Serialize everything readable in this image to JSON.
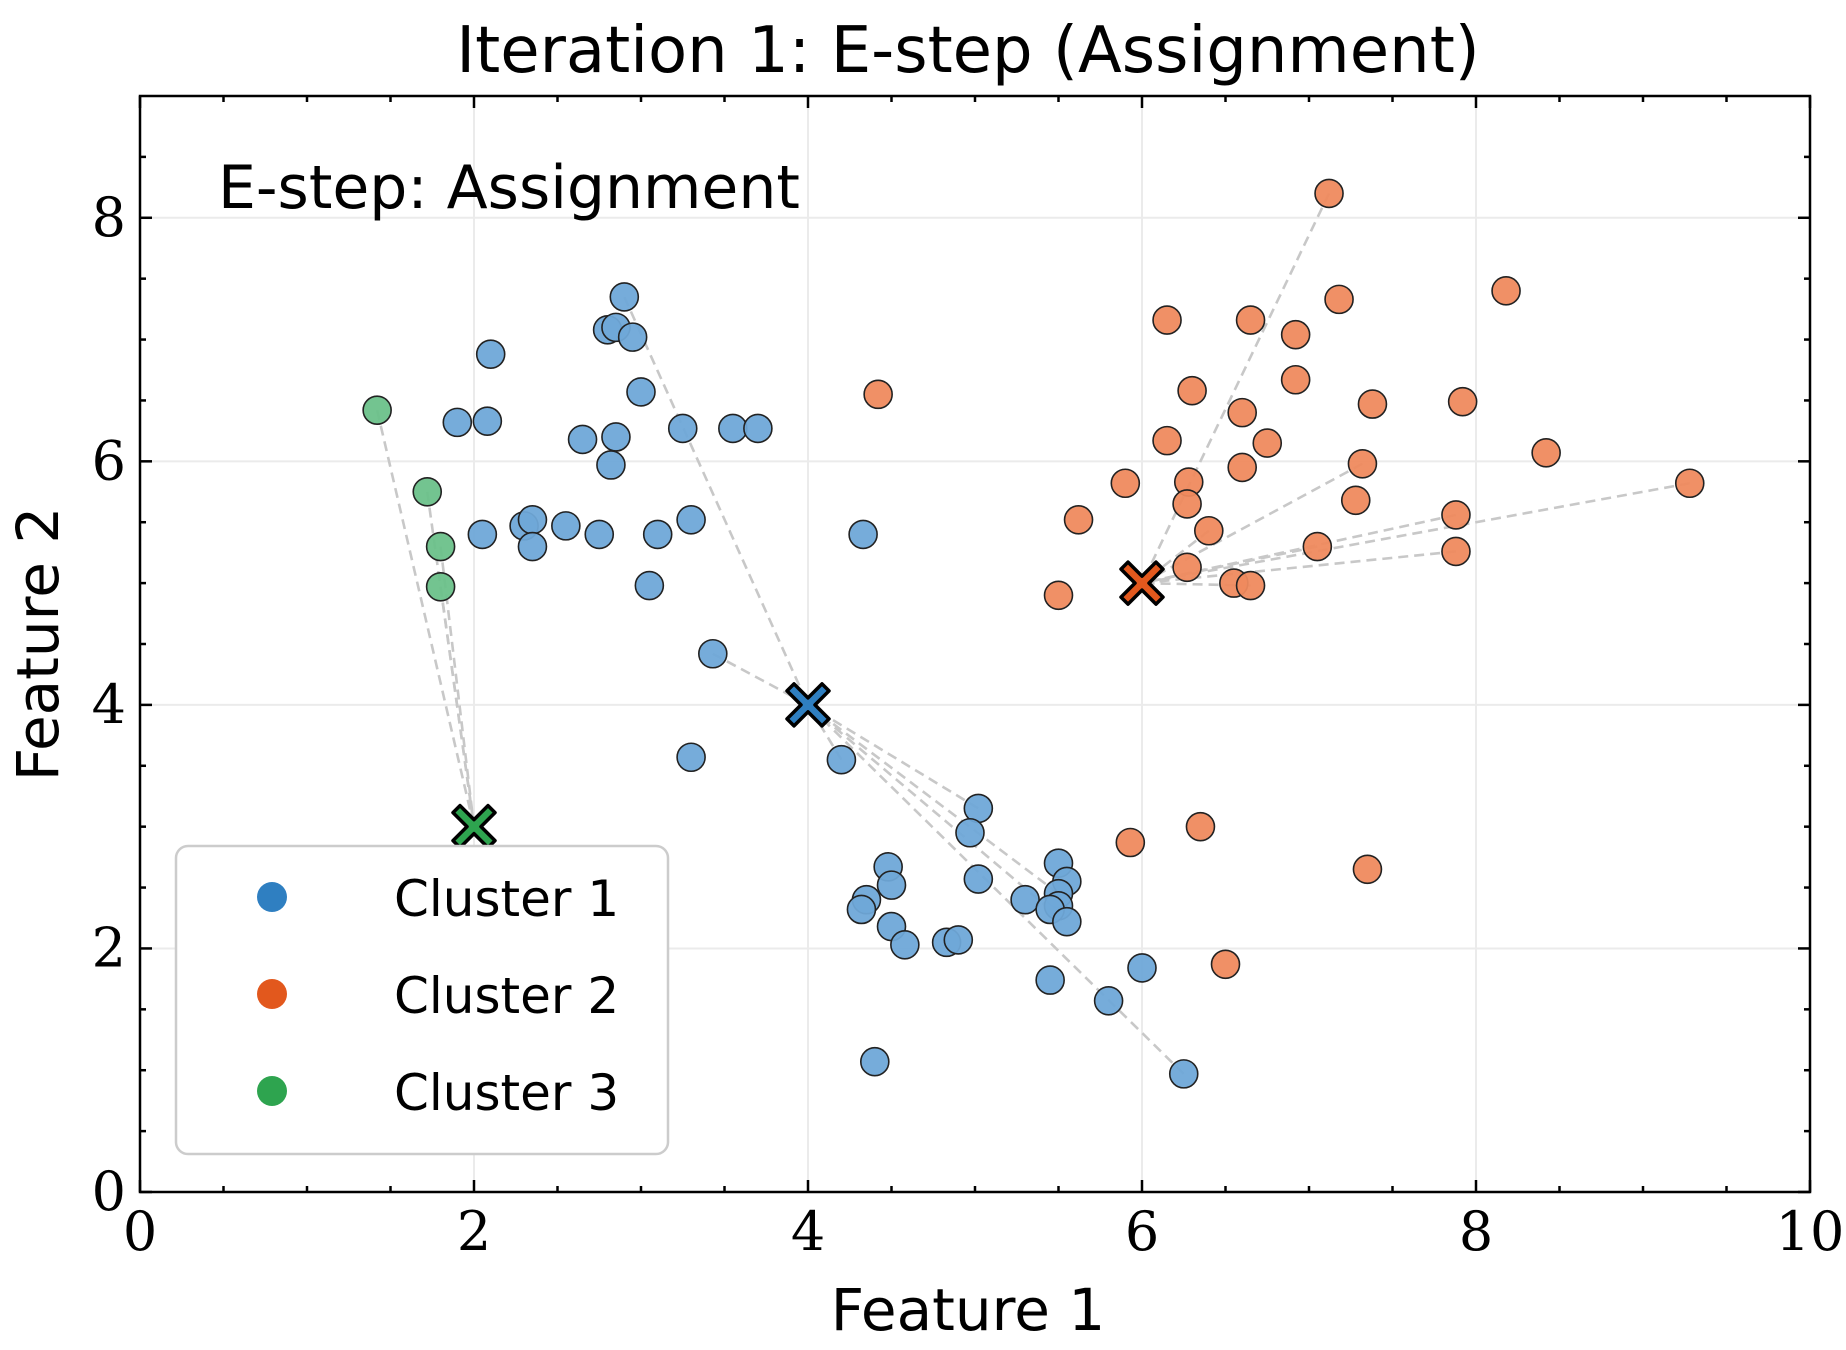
{
  "chart_data": {
    "type": "scatter",
    "title": "Iteration 1: E-step (Assignment)",
    "xlabel": "Feature 1",
    "ylabel": "Feature 2",
    "xlim": [
      0,
      10
    ],
    "ylim": [
      0,
      9
    ],
    "xticks": [
      0,
      2,
      4,
      6,
      8,
      10
    ],
    "yticks": [
      0,
      2,
      4,
      6,
      8
    ],
    "xtick_labels": [
      "0",
      "2",
      "4",
      "6",
      "8",
      "10"
    ],
    "ytick_labels": [
      "0",
      "2",
      "4",
      "6",
      "8"
    ],
    "grid": true,
    "annotation": "E-step: Assignment",
    "legend_position": "lower-left",
    "colors": {
      "cluster1_point": "#6fa8d8",
      "cluster2_point": "#ef8a5e",
      "cluster3_point": "#6cc18a",
      "cluster1_marker": "#2f7fc1",
      "cluster2_marker": "#e2581d",
      "cluster3_marker": "#2ea44f",
      "assignment_line": "#c8c8c8",
      "grid": "#ebebeb"
    },
    "series": [
      {
        "name": "Cluster 1",
        "color_key": "cluster1",
        "centroid": [
          4.0,
          4.0
        ],
        "points": [
          [
            2.9,
            7.35
          ],
          [
            2.8,
            7.08
          ],
          [
            2.85,
            7.1
          ],
          [
            2.95,
            7.02
          ],
          [
            2.1,
            6.88
          ],
          [
            3.0,
            6.57
          ],
          [
            1.9,
            6.32
          ],
          [
            2.08,
            6.33
          ],
          [
            2.65,
            6.18
          ],
          [
            2.85,
            6.2
          ],
          [
            3.25,
            6.27
          ],
          [
            3.55,
            6.27
          ],
          [
            3.7,
            6.27
          ],
          [
            2.82,
            5.97
          ],
          [
            2.05,
            5.4
          ],
          [
            2.3,
            5.47
          ],
          [
            2.35,
            5.52
          ],
          [
            2.55,
            5.47
          ],
          [
            2.75,
            5.4
          ],
          [
            3.1,
            5.4
          ],
          [
            3.3,
            5.52
          ],
          [
            2.35,
            5.3
          ],
          [
            3.05,
            4.98
          ],
          [
            4.33,
            5.4
          ],
          [
            3.43,
            4.42
          ],
          [
            3.3,
            3.57
          ],
          [
            4.2,
            3.55
          ],
          [
            5.02,
            3.15
          ],
          [
            4.97,
            2.95
          ],
          [
            4.48,
            2.67
          ],
          [
            4.5,
            2.52
          ],
          [
            4.35,
            2.4
          ],
          [
            4.32,
            2.32
          ],
          [
            4.5,
            2.18
          ],
          [
            4.58,
            2.03
          ],
          [
            4.83,
            2.05
          ],
          [
            4.9,
            2.07
          ],
          [
            5.02,
            2.57
          ],
          [
            5.3,
            2.4
          ],
          [
            5.5,
            2.7
          ],
          [
            5.55,
            2.55
          ],
          [
            5.5,
            2.45
          ],
          [
            5.5,
            2.35
          ],
          [
            5.45,
            2.32
          ],
          [
            5.55,
            2.22
          ],
          [
            5.45,
            1.74
          ],
          [
            5.8,
            1.57
          ],
          [
            6.0,
            1.84
          ],
          [
            6.25,
            0.97
          ],
          [
            4.4,
            1.07
          ]
        ]
      },
      {
        "name": "Cluster 2",
        "color_key": "cluster2",
        "centroid": [
          6.0,
          5.0
        ],
        "points": [
          [
            7.12,
            8.2
          ],
          [
            8.18,
            7.4
          ],
          [
            6.15,
            7.16
          ],
          [
            6.65,
            7.16
          ],
          [
            7.18,
            7.33
          ],
          [
            6.92,
            7.04
          ],
          [
            6.3,
            6.58
          ],
          [
            6.92,
            6.67
          ],
          [
            7.38,
            6.47
          ],
          [
            7.92,
            6.49
          ],
          [
            4.42,
            6.55
          ],
          [
            6.6,
            6.4
          ],
          [
            6.15,
            6.17
          ],
          [
            6.75,
            6.15
          ],
          [
            8.42,
            6.07
          ],
          [
            7.32,
            5.98
          ],
          [
            6.6,
            5.95
          ],
          [
            5.9,
            5.82
          ],
          [
            6.28,
            5.83
          ],
          [
            9.28,
            5.82
          ],
          [
            6.27,
            5.65
          ],
          [
            7.28,
            5.68
          ],
          [
            7.88,
            5.56
          ],
          [
            5.62,
            5.52
          ],
          [
            6.4,
            5.43
          ],
          [
            7.05,
            5.3
          ],
          [
            7.88,
            5.26
          ],
          [
            6.27,
            5.13
          ],
          [
            6.55,
            5.0
          ],
          [
            6.65,
            4.98
          ],
          [
            5.5,
            4.9
          ],
          [
            6.35,
            3.0
          ],
          [
            5.93,
            2.87
          ],
          [
            7.35,
            2.65
          ],
          [
            6.5,
            1.87
          ]
        ]
      },
      {
        "name": "Cluster 3",
        "color_key": "cluster3",
        "centroid": [
          2.0,
          3.0
        ],
        "points": [
          [
            1.42,
            6.42
          ],
          [
            1.72,
            5.75
          ],
          [
            1.8,
            5.3
          ],
          [
            1.8,
            4.97
          ]
        ]
      }
    ],
    "assignment_lines": [
      {
        "series": 2,
        "point": [
          1.42,
          6.42
        ]
      },
      {
        "series": 2,
        "point": [
          1.72,
          5.75
        ]
      },
      {
        "series": 2,
        "point": [
          1.8,
          5.3
        ]
      },
      {
        "series": 2,
        "point": [
          1.8,
          4.97
        ]
      },
      {
        "series": 0,
        "point": [
          2.9,
          7.35
        ]
      },
      {
        "series": 0,
        "point": [
          3.43,
          4.42
        ]
      },
      {
        "series": 0,
        "point": [
          4.2,
          3.55
        ]
      },
      {
        "series": 0,
        "point": [
          5.5,
          2.45
        ]
      },
      {
        "series": 0,
        "point": [
          5.45,
          2.32
        ]
      },
      {
        "series": 0,
        "point": [
          5.02,
          3.15
        ]
      },
      {
        "series": 0,
        "point": [
          6.25,
          0.97
        ]
      },
      {
        "series": 1,
        "point": [
          7.12,
          8.2
        ]
      },
      {
        "series": 1,
        "point": [
          7.32,
          5.98
        ]
      },
      {
        "series": 1,
        "point": [
          9.28,
          5.82
        ]
      },
      {
        "series": 1,
        "point": [
          7.88,
          5.56
        ]
      },
      {
        "series": 1,
        "point": [
          7.88,
          5.26
        ]
      },
      {
        "series": 1,
        "point": [
          7.05,
          5.3
        ]
      },
      {
        "series": 1,
        "point": [
          6.65,
          4.98
        ]
      },
      {
        "series": 1,
        "point": [
          6.4,
          5.43
        ]
      }
    ]
  }
}
